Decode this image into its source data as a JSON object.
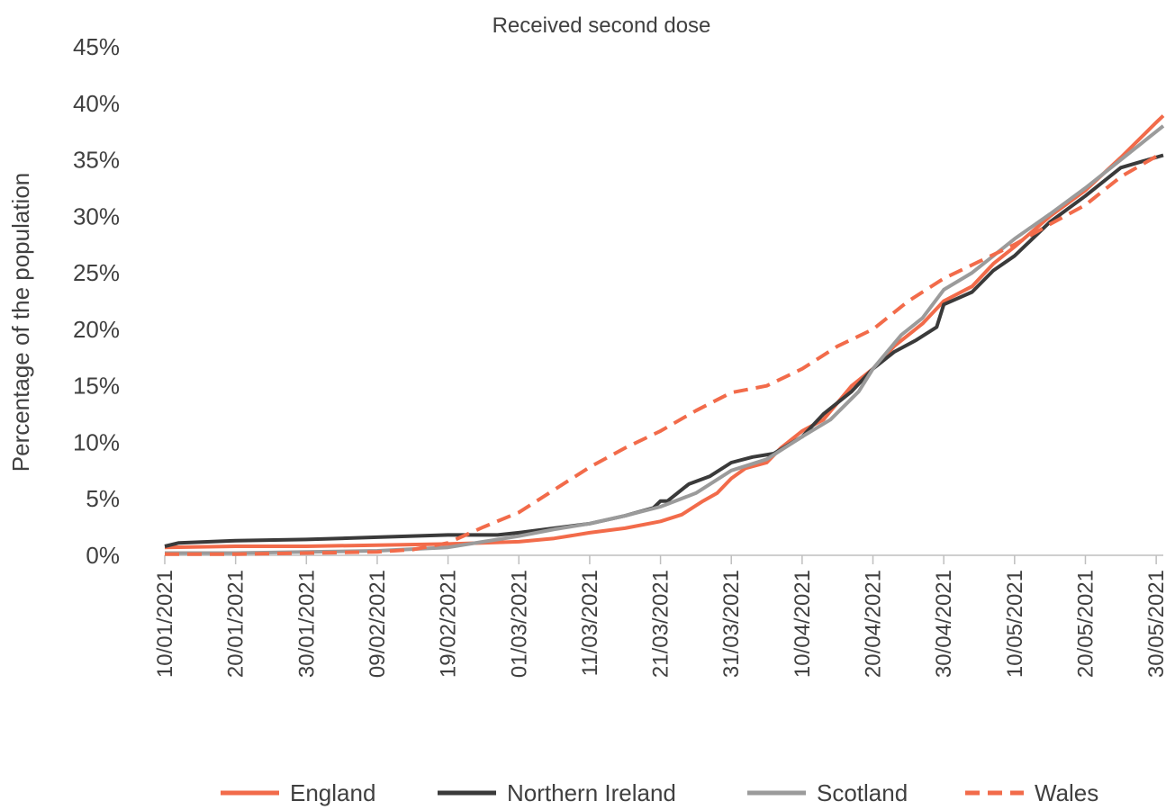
{
  "chart_data": {
    "type": "line",
    "title": "Received second dose",
    "ylabel": "Percentage of the population",
    "xlabel": "",
    "ylim": [
      0,
      45
    ],
    "yticks": [
      "0%",
      "5%",
      "10%",
      "15%",
      "20%",
      "25%",
      "30%",
      "35%",
      "40%",
      "45%"
    ],
    "xlim": [
      "10/01/2021",
      "31/05/2021"
    ],
    "xticks": [
      "10/01/2021",
      "20/01/2021",
      "30/01/2021",
      "09/02/2021",
      "19/02/2021",
      "01/03/2021",
      "11/03/2021",
      "21/03/2021",
      "31/03/2021",
      "10/04/2021",
      "20/04/2021",
      "30/04/2021",
      "10/05/2021",
      "20/05/2021",
      "30/05/2021"
    ],
    "grid": false,
    "legend": "bottom",
    "series": [
      {
        "name": "England",
        "color": "#f26b4a",
        "dash": "solid",
        "points": [
          [
            "10/01/2021",
            0.7
          ],
          [
            "20/01/2021",
            0.8
          ],
          [
            "30/01/2021",
            0.8
          ],
          [
            "09/02/2021",
            0.9
          ],
          [
            "19/02/2021",
            1.0
          ],
          [
            "01/03/2021",
            1.2
          ],
          [
            "06/03/2021",
            1.5
          ],
          [
            "11/03/2021",
            2.0
          ],
          [
            "16/03/2021",
            2.4
          ],
          [
            "21/03/2021",
            3.0
          ],
          [
            "24/03/2021",
            3.6
          ],
          [
            "27/03/2021",
            4.8
          ],
          [
            "29/03/2021",
            5.5
          ],
          [
            "31/03/2021",
            6.8
          ],
          [
            "02/04/2021",
            7.7
          ],
          [
            "05/04/2021",
            8.2
          ],
          [
            "07/04/2021",
            9.5
          ],
          [
            "10/04/2021",
            11.0
          ],
          [
            "13/04/2021",
            12.0
          ],
          [
            "17/04/2021",
            15.0
          ],
          [
            "20/04/2021",
            16.5
          ],
          [
            "23/04/2021",
            18.5
          ],
          [
            "27/04/2021",
            20.5
          ],
          [
            "30/04/2021",
            22.5
          ],
          [
            "04/05/2021",
            23.8
          ],
          [
            "07/05/2021",
            25.8
          ],
          [
            "10/05/2021",
            27.3
          ],
          [
            "15/05/2021",
            30.0
          ],
          [
            "20/05/2021",
            32.3
          ],
          [
            "25/05/2021",
            35.2
          ],
          [
            "30/05/2021",
            38.3
          ],
          [
            "31/05/2021",
            38.9
          ]
        ]
      },
      {
        "name": "Northern Ireland",
        "color": "#3a3a3a",
        "dash": "solid",
        "points": [
          [
            "10/01/2021",
            0.8
          ],
          [
            "12/01/2021",
            1.1
          ],
          [
            "20/01/2021",
            1.3
          ],
          [
            "30/01/2021",
            1.4
          ],
          [
            "09/02/2021",
            1.6
          ],
          [
            "19/02/2021",
            1.8
          ],
          [
            "26/02/2021",
            1.8
          ],
          [
            "01/03/2021",
            2.0
          ],
          [
            "06/03/2021",
            2.4
          ],
          [
            "11/03/2021",
            2.8
          ],
          [
            "16/03/2021",
            3.5
          ],
          [
            "20/03/2021",
            4.2
          ],
          [
            "21/03/2021",
            4.8
          ],
          [
            "22/03/2021",
            4.8
          ],
          [
            "25/03/2021",
            6.3
          ],
          [
            "28/03/2021",
            7.0
          ],
          [
            "31/03/2021",
            8.2
          ],
          [
            "03/04/2021",
            8.7
          ],
          [
            "06/04/2021",
            9.0
          ],
          [
            "10/04/2021",
            10.5
          ],
          [
            "13/04/2021",
            12.5
          ],
          [
            "17/04/2021",
            14.5
          ],
          [
            "20/04/2021",
            16.5
          ],
          [
            "23/04/2021",
            18.0
          ],
          [
            "26/04/2021",
            19.0
          ],
          [
            "29/04/2021",
            20.2
          ],
          [
            "30/04/2021",
            22.2
          ],
          [
            "04/05/2021",
            23.3
          ],
          [
            "07/05/2021",
            25.2
          ],
          [
            "10/05/2021",
            26.5
          ],
          [
            "15/05/2021",
            29.5
          ],
          [
            "20/05/2021",
            31.8
          ],
          [
            "25/05/2021",
            34.3
          ],
          [
            "31/05/2021",
            35.4
          ]
        ]
      },
      {
        "name": "Scotland",
        "color": "#9b9b9b",
        "dash": "solid",
        "points": [
          [
            "10/01/2021",
            0.2
          ],
          [
            "20/01/2021",
            0.2
          ],
          [
            "30/01/2021",
            0.3
          ],
          [
            "09/02/2021",
            0.4
          ],
          [
            "19/02/2021",
            0.7
          ],
          [
            "24/02/2021",
            1.2
          ],
          [
            "01/03/2021",
            1.7
          ],
          [
            "06/03/2021",
            2.3
          ],
          [
            "11/03/2021",
            2.8
          ],
          [
            "16/03/2021",
            3.5
          ],
          [
            "21/03/2021",
            4.3
          ],
          [
            "26/03/2021",
            5.5
          ],
          [
            "31/03/2021",
            7.5
          ],
          [
            "05/04/2021",
            8.5
          ],
          [
            "10/04/2021",
            10.5
          ],
          [
            "14/04/2021",
            12.0
          ],
          [
            "18/04/2021",
            14.5
          ],
          [
            "20/04/2021",
            16.5
          ],
          [
            "24/04/2021",
            19.5
          ],
          [
            "27/04/2021",
            21.0
          ],
          [
            "30/04/2021",
            23.5
          ],
          [
            "04/05/2021",
            25.0
          ],
          [
            "07/05/2021",
            26.5
          ],
          [
            "10/05/2021",
            28.0
          ],
          [
            "15/05/2021",
            30.2
          ],
          [
            "20/05/2021",
            32.5
          ],
          [
            "25/05/2021",
            35.0
          ],
          [
            "31/05/2021",
            38.0
          ]
        ]
      },
      {
        "name": "Wales",
        "color": "#f26b4a",
        "dash": "dashed",
        "points": [
          [
            "10/01/2021",
            0.1
          ],
          [
            "20/01/2021",
            0.1
          ],
          [
            "30/01/2021",
            0.2
          ],
          [
            "09/02/2021",
            0.3
          ],
          [
            "14/02/2021",
            0.5
          ],
          [
            "19/02/2021",
            1.1
          ],
          [
            "24/02/2021",
            2.5
          ],
          [
            "01/03/2021",
            3.8
          ],
          [
            "06/03/2021",
            5.8
          ],
          [
            "11/03/2021",
            7.8
          ],
          [
            "16/03/2021",
            9.5
          ],
          [
            "21/03/2021",
            11.0
          ],
          [
            "26/03/2021",
            12.8
          ],
          [
            "31/03/2021",
            14.4
          ],
          [
            "05/04/2021",
            15.0
          ],
          [
            "10/04/2021",
            16.5
          ],
          [
            "15/04/2021",
            18.5
          ],
          [
            "20/04/2021",
            20.0
          ],
          [
            "25/04/2021",
            22.5
          ],
          [
            "30/04/2021",
            24.5
          ],
          [
            "05/05/2021",
            26.0
          ],
          [
            "10/05/2021",
            27.5
          ],
          [
            "15/05/2021",
            29.3
          ],
          [
            "20/05/2021",
            31.0
          ],
          [
            "25/05/2021",
            33.5
          ],
          [
            "30/05/2021",
            35.3
          ],
          [
            "31/05/2021",
            35.6
          ]
        ]
      }
    ]
  }
}
